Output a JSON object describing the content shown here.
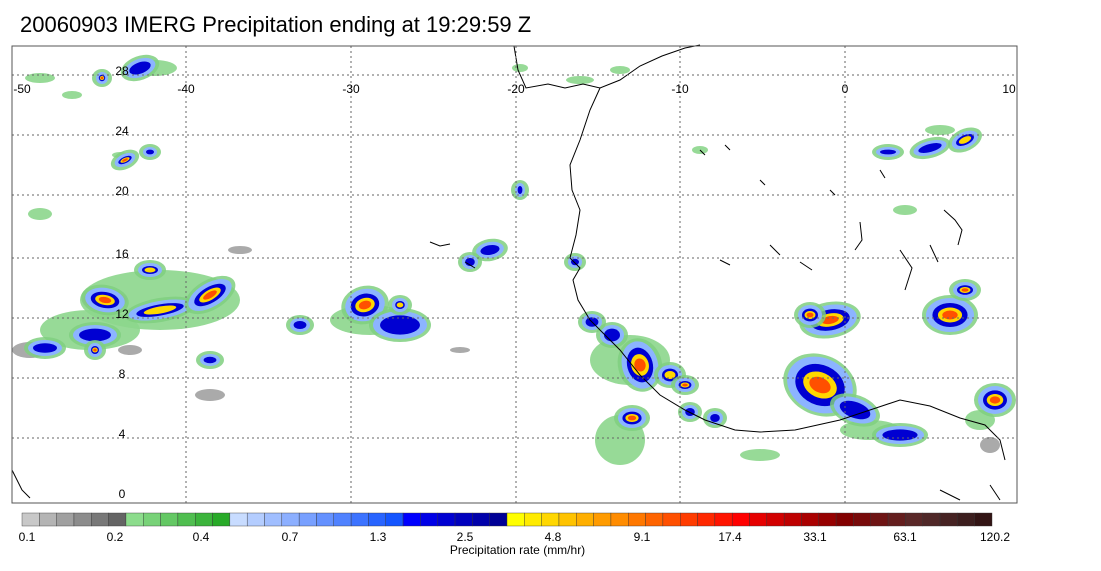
{
  "title": "20060903 IMERG Precipitation ending at 19:29:59 Z",
  "map": {
    "lon_ticks": [
      "-50",
      "-40",
      "-30",
      "-20",
      "-10",
      "0",
      "10"
    ],
    "lat_ticks": [
      "28",
      "24",
      "20",
      "16",
      "12",
      "8",
      "4",
      "0"
    ],
    "lon_range": [
      -50,
      10
    ],
    "lat_range": [
      -0.5,
      30
    ],
    "gridlines": "dotted"
  },
  "colorbar": {
    "title": "Precipitation rate (mm/hr)",
    "labels": [
      "0.1",
      "0.2",
      "0.4",
      "0.7",
      "1.3",
      "2.5",
      "4.8",
      "9.1",
      "17.4",
      "33.1",
      "63.1",
      "120.2"
    ],
    "colors": [
      "#c8c8c8",
      "#b4b4b4",
      "#a0a0a0",
      "#8c8c8c",
      "#787878",
      "#646464",
      "#8cdc8c",
      "#78d278",
      "#64c864",
      "#50be50",
      "#3cb43c",
      "#28aa28",
      "#c8dcff",
      "#b4cdff",
      "#a0beff",
      "#8cafff",
      "#78a0ff",
      "#6491ff",
      "#5082ff",
      "#3c73ff",
      "#2864ff",
      "#1455ff",
      "#0000ff",
      "#0000e6",
      "#0000d2",
      "#0000be",
      "#0000aa",
      "#000096",
      "#ffff00",
      "#ffeb00",
      "#ffd700",
      "#ffc300",
      "#ffaf00",
      "#ff9b00",
      "#ff8c00",
      "#ff7800",
      "#ff6400",
      "#ff5000",
      "#ff3c00",
      "#ff2800",
      "#ff1400",
      "#ff0000",
      "#e60000",
      "#d20000",
      "#be0000",
      "#aa0000",
      "#960000",
      "#820000",
      "#780a0a",
      "#6e1414",
      "#641e1e",
      "#5a2828",
      "#502828",
      "#462323",
      "#3c1e1e",
      "#321414"
    ]
  }
}
